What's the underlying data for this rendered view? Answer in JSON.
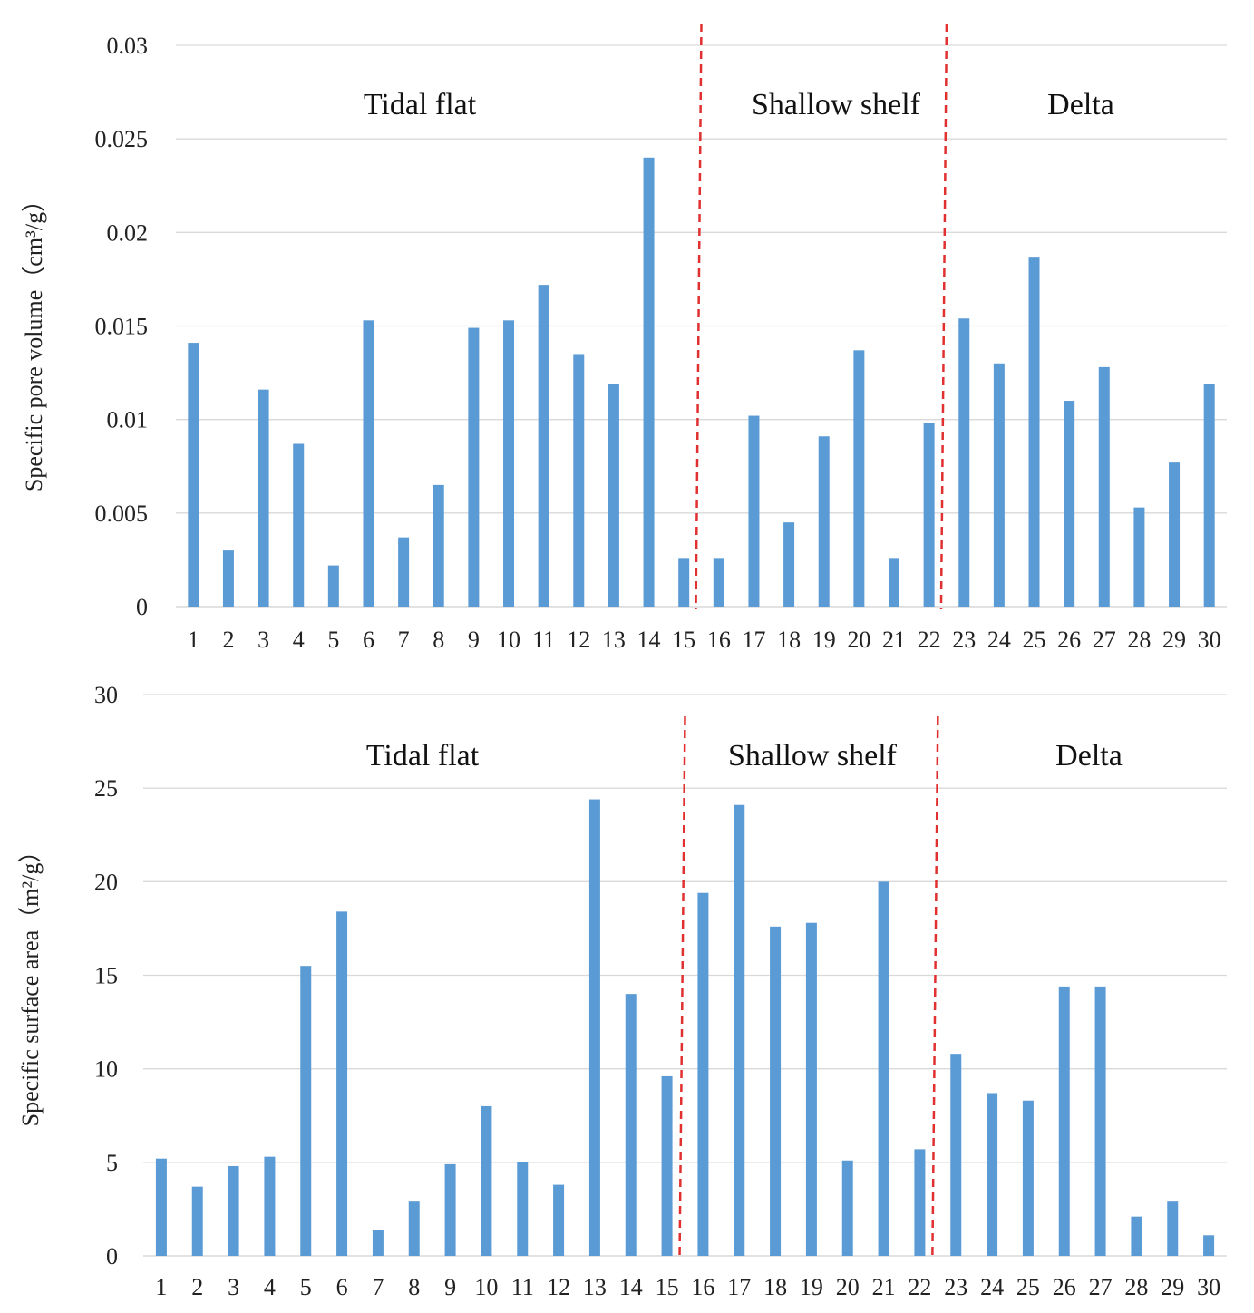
{
  "colors": {
    "bar": "#5b9bd5",
    "divider": "#e03030",
    "grid": "#d9d9d9"
  },
  "chart_data": [
    {
      "type": "bar",
      "title": "",
      "xlabel": "",
      "ylabel": "Specific pore volume（cm³/g）",
      "ylabel_main": "Specific pore volume",
      "ylabel_unit": "（cm³/g）",
      "categories": [
        "1",
        "2",
        "3",
        "4",
        "5",
        "6",
        "7",
        "8",
        "9",
        "10",
        "11",
        "12",
        "13",
        "14",
        "15",
        "16",
        "17",
        "18",
        "19",
        "20",
        "21",
        "22",
        "23",
        "24",
        "25",
        "26",
        "27",
        "28",
        "29",
        "30"
      ],
      "values": [
        0.0141,
        0.003,
        0.0116,
        0.0087,
        0.0022,
        0.0153,
        0.0037,
        0.0065,
        0.0149,
        0.0153,
        0.0172,
        0.0135,
        0.0119,
        0.024,
        0.0026,
        0.0026,
        0.0102,
        0.0045,
        0.0091,
        0.0137,
        0.0026,
        0.0098,
        0.0154,
        0.013,
        0.0187,
        0.011,
        0.0128,
        0.0053,
        0.0077,
        0.0119
      ],
      "ylim": [
        0,
        0.03
      ],
      "yticks": [
        "0",
        "0.005",
        "0.01",
        "0.015",
        "0.02",
        "0.025",
        "0.03"
      ],
      "regions": [
        "Tidal flat",
        "Shallow  shelf",
        "Delta"
      ],
      "dividers_after_category": [
        15,
        22
      ]
    },
    {
      "type": "bar",
      "title": "",
      "xlabel": "",
      "ylabel": "Specific surface area（m²/g）",
      "ylabel_main": "Specific surface area",
      "ylabel_unit": "（m²/g）",
      "categories": [
        "1",
        "2",
        "3",
        "4",
        "5",
        "6",
        "7",
        "8",
        "9",
        "10",
        "11",
        "12",
        "13",
        "14",
        "15",
        "16",
        "17",
        "18",
        "19",
        "20",
        "21",
        "22",
        "23",
        "24",
        "25",
        "26",
        "27",
        "28",
        "29",
        "30"
      ],
      "values": [
        5.2,
        3.7,
        4.8,
        5.3,
        15.5,
        18.4,
        1.4,
        2.9,
        4.9,
        8.0,
        5.0,
        3.8,
        24.4,
        14.0,
        9.6,
        19.4,
        24.1,
        17.6,
        17.8,
        5.1,
        20.0,
        5.7,
        10.8,
        8.7,
        8.3,
        14.4,
        14.4,
        2.1,
        2.9,
        1.1
      ],
      "ylim": [
        0,
        30
      ],
      "yticks": [
        "0",
        "5",
        "10",
        "15",
        "20",
        "25",
        "30"
      ],
      "regions": [
        "Tidal flat",
        "Shallow  shelf",
        "Delta"
      ],
      "dividers_after_category": [
        15,
        22
      ]
    }
  ]
}
